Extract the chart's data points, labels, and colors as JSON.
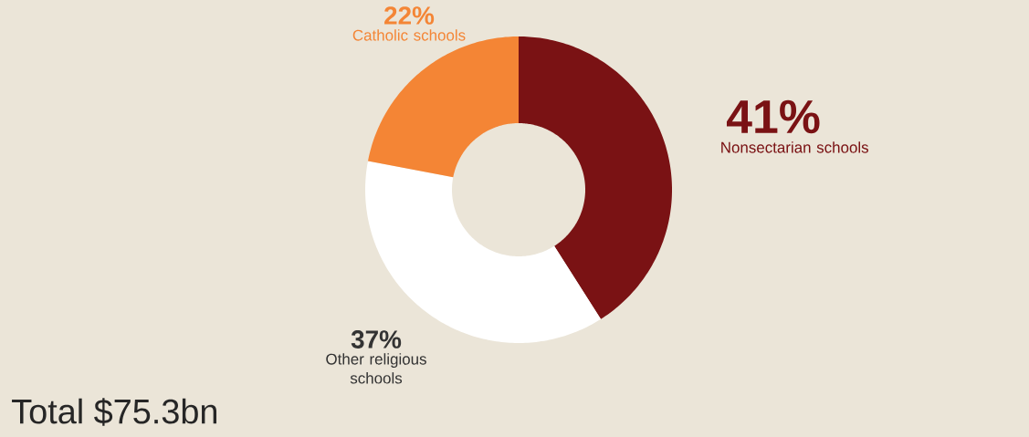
{
  "chart_data": {
    "type": "donut",
    "categories": [
      "Nonsectarian schools",
      "Other religious schools",
      "Catholic schools"
    ],
    "values": [
      41,
      37,
      22
    ],
    "colors": [
      "#7a1214",
      "#ffffff",
      "#f48535"
    ],
    "value_labels": [
      "41%",
      "37%",
      "22%"
    ],
    "annotations": [
      "Total $75.3bn"
    ]
  }
}
